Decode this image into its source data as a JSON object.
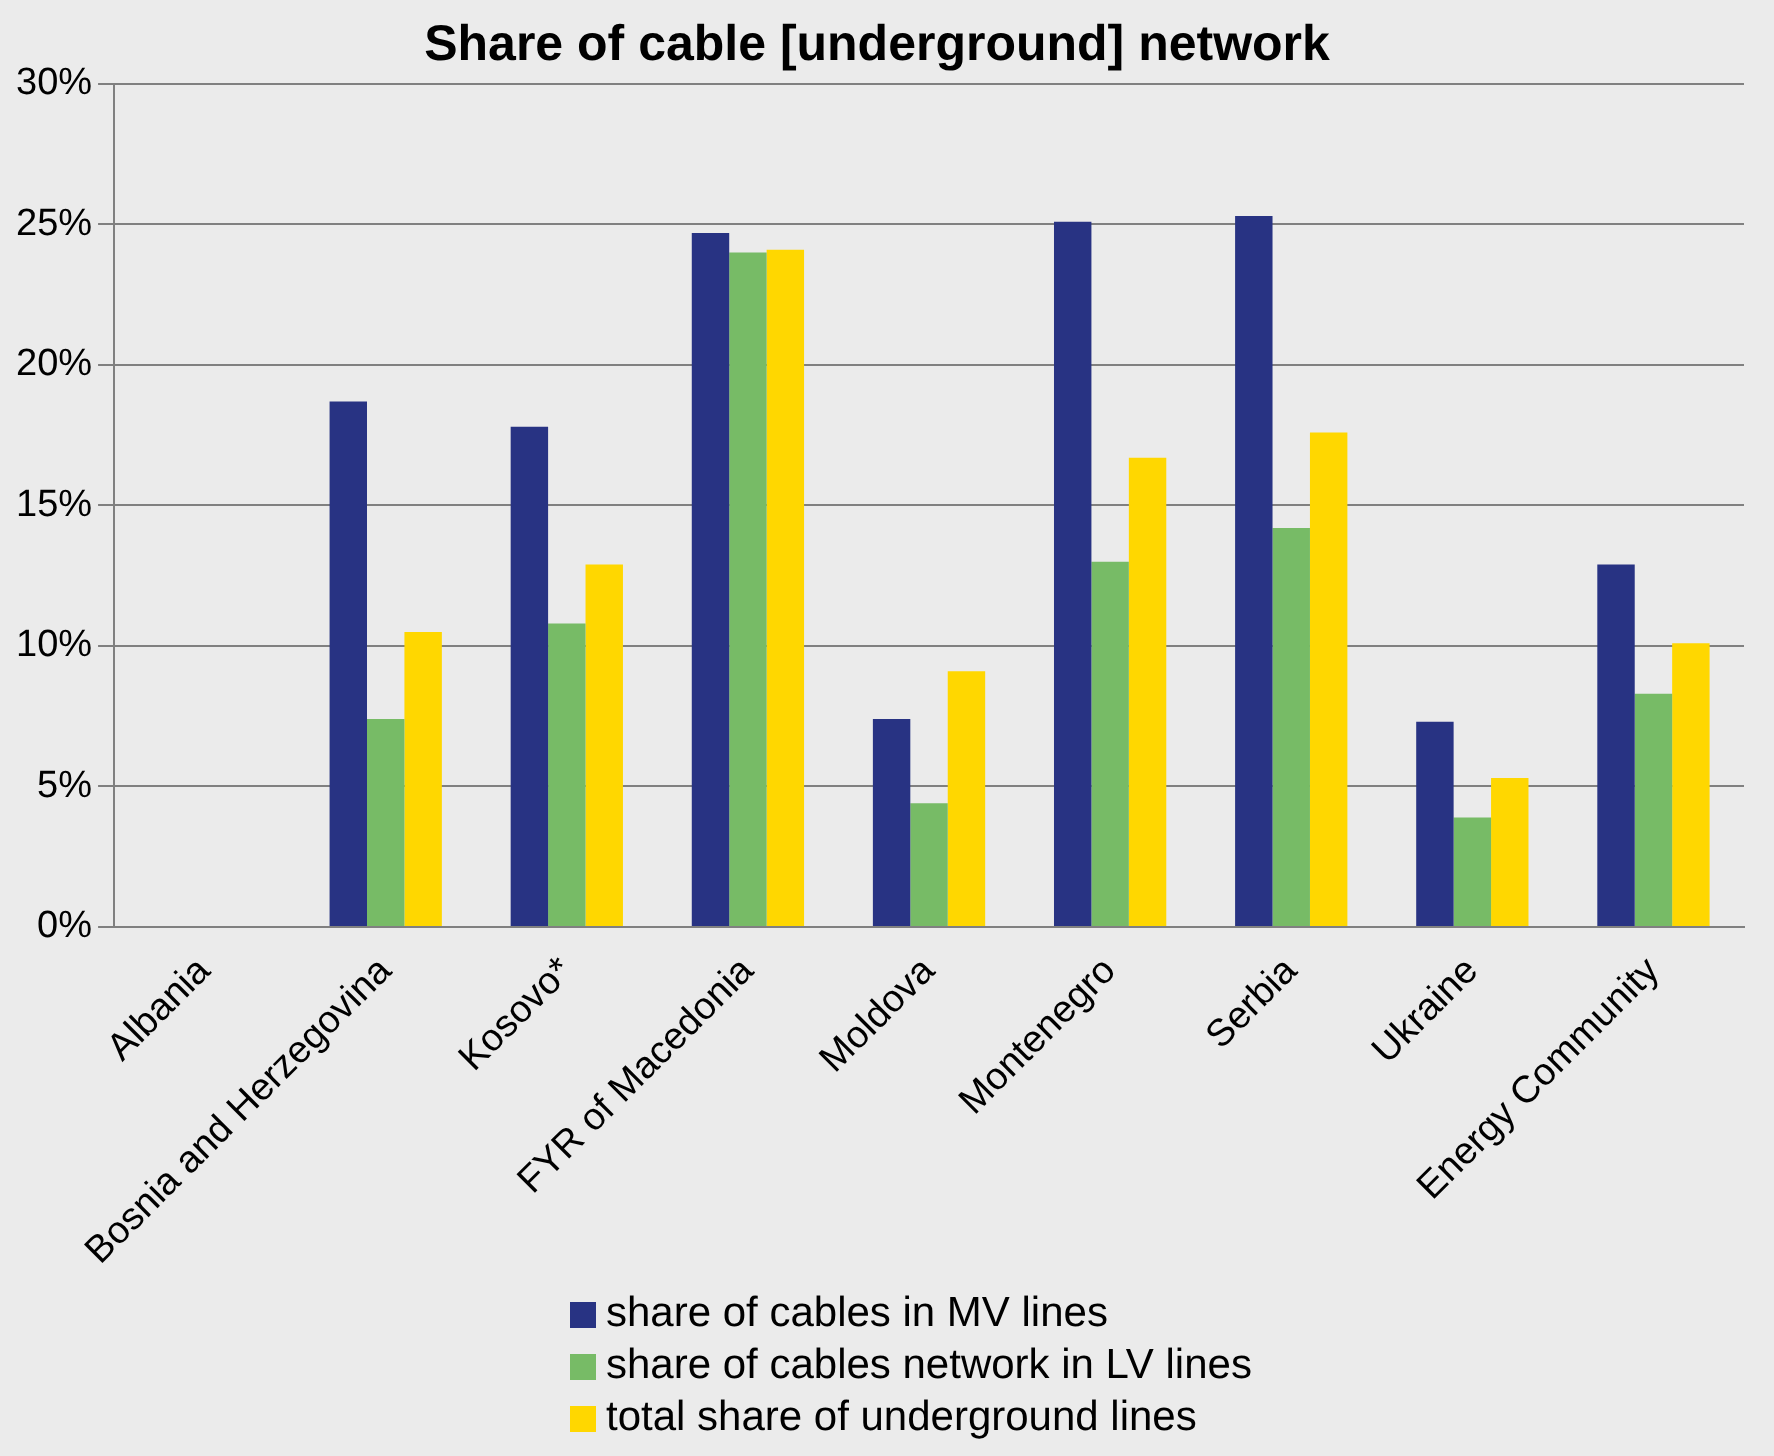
{
  "chart_data": {
    "type": "bar",
    "title": "Share of cable [underground] network",
    "categories": [
      "Albania",
      "Bosnia and Herzegovina",
      "Kosovo*",
      "FYR of Macedonia",
      "Moldova",
      "Montenegro",
      "Serbia",
      "Ukraine",
      "Energy Community"
    ],
    "series": [
      {
        "name": "share of cables in MV lines",
        "color": "#283383",
        "values": [
          null,
          18.7,
          17.8,
          24.7,
          7.4,
          25.1,
          25.3,
          7.3,
          12.9
        ]
      },
      {
        "name": "share of cables network in LV lines",
        "color": "#77bb66",
        "values": [
          null,
          7.4,
          10.8,
          24.0,
          4.4,
          13.0,
          14.2,
          3.9,
          8.3
        ]
      },
      {
        "name": "total share of underground lines",
        "color": "#ffd700",
        "values": [
          null,
          10.5,
          12.9,
          24.1,
          9.1,
          16.7,
          17.6,
          5.3,
          10.1
        ]
      }
    ],
    "ylim": [
      0,
      30
    ],
    "yticks": [
      {
        "value": 0,
        "label": "0%"
      },
      {
        "value": 5,
        "label": "5%"
      },
      {
        "value": 10,
        "label": "10%"
      },
      {
        "value": 15,
        "label": "15%"
      },
      {
        "value": 20,
        "label": "20%"
      },
      {
        "value": 25,
        "label": "25%"
      },
      {
        "value": 30,
        "label": "30%"
      }
    ],
    "grid": "y",
    "legend": "bottom"
  }
}
